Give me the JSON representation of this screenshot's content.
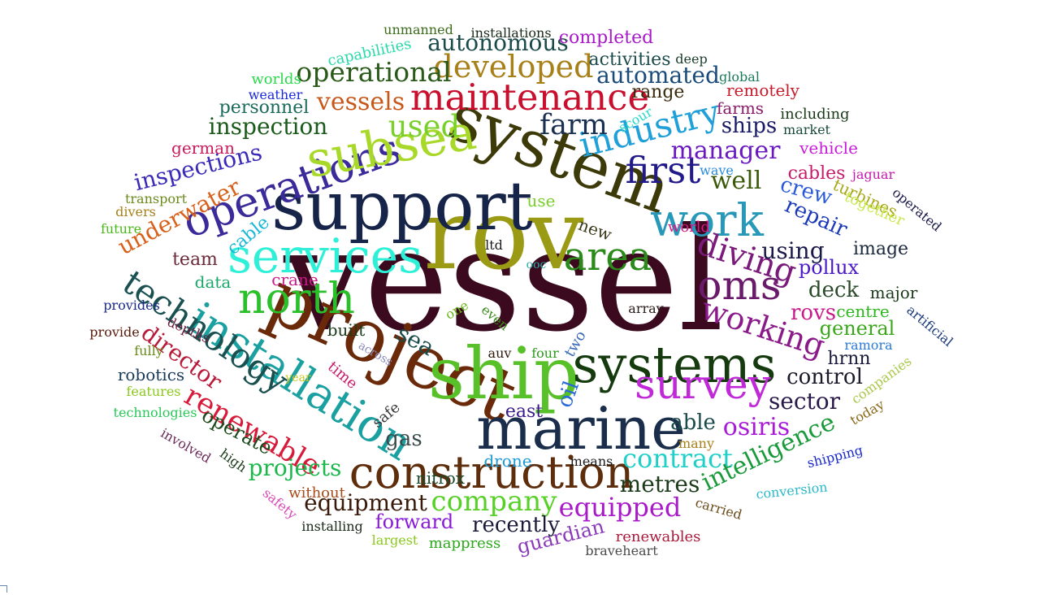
{
  "words": [
    {
      "text": "vessel",
      "color": "#3b0a1e"
    },
    {
      "text": "rov",
      "color": "#9a9a14"
    },
    {
      "text": "support",
      "color": "#16244a"
    },
    {
      "text": "system",
      "color": "#3d3a0a"
    },
    {
      "text": "project",
      "color": "#6a2a0a"
    },
    {
      "text": "ship",
      "color": "#58c028"
    },
    {
      "text": "systems",
      "color": "#143a0e"
    },
    {
      "text": "marine",
      "color": "#1a2d4a"
    },
    {
      "text": "construction",
      "color": "#5e2e0c"
    },
    {
      "text": "services",
      "color": "#2ef0d8"
    },
    {
      "text": "operations",
      "color": "#3a2a9a"
    },
    {
      "text": "subsea",
      "color": "#a8d828"
    },
    {
      "text": "maintenance",
      "color": "#c8102e"
    },
    {
      "text": "installation",
      "color": "#1aa0a0"
    },
    {
      "text": "north",
      "color": "#2ac02a"
    },
    {
      "text": "work",
      "color": "#2898b8"
    },
    {
      "text": "oms",
      "color": "#6a1a6a"
    },
    {
      "text": "industry",
      "color": "#20a0d8"
    },
    {
      "text": "survey",
      "color": "#c028d8"
    },
    {
      "text": "area",
      "color": "#2a8a1a"
    },
    {
      "text": "first",
      "color": "#221a8a"
    },
    {
      "text": "technology",
      "color": "#1a5050"
    },
    {
      "text": "diving",
      "color": "#7a1a7a"
    },
    {
      "text": "working",
      "color": "#8a1a8a"
    },
    {
      "text": "renewable",
      "color": "#d81a3a"
    },
    {
      "text": "developed",
      "color": "#a8801a"
    },
    {
      "text": "operational",
      "color": "#2a5a1a"
    },
    {
      "text": "vessels",
      "color": "#c8581a"
    },
    {
      "text": "farm",
      "color": "#1a3050"
    },
    {
      "text": "used",
      "color": "#7ad02a"
    },
    {
      "text": "manager",
      "color": "#6a1ac0"
    },
    {
      "text": "well",
      "color": "#3a5a0a"
    },
    {
      "text": "company",
      "color": "#58d028"
    },
    {
      "text": "contract",
      "color": "#20d0c8"
    },
    {
      "text": "equipped",
      "color": "#a81ac8"
    },
    {
      "text": "equipment",
      "color": "#3a1a0a"
    },
    {
      "text": "intelligence",
      "color": "#1a9a3a"
    },
    {
      "text": "sector",
      "color": "#2a1a4a"
    },
    {
      "text": "metres",
      "color": "#1a3a1a"
    },
    {
      "text": "control",
      "color": "#1a1a2a"
    },
    {
      "text": "osiris",
      "color": "#a81ad8"
    },
    {
      "text": "projects",
      "color": "#1ab84a"
    },
    {
      "text": "inspection",
      "color": "#1a5a1a"
    },
    {
      "text": "inspections",
      "color": "#3a2ab8"
    },
    {
      "text": "underwater",
      "color": "#d8601a"
    },
    {
      "text": "director",
      "color": "#b81a3a"
    },
    {
      "text": "autonomous",
      "color": "#1a4a4a"
    },
    {
      "text": "automated",
      "color": "#1a4a7a"
    },
    {
      "text": "deck",
      "color": "#2a4a2a"
    },
    {
      "text": "using",
      "color": "#1a1a4a"
    },
    {
      "text": "repair",
      "color": "#1a3ab8"
    },
    {
      "text": "rovs",
      "color": "#c81a8a"
    },
    {
      "text": "general",
      "color": "#3aa81a"
    },
    {
      "text": "sea",
      "color": "#1a4a4a"
    },
    {
      "text": "gas",
      "color": "#3a4a4a"
    },
    {
      "text": "able",
      "color": "#1a4a4a"
    },
    {
      "text": "operate",
      "color": "#1a4a1a"
    },
    {
      "text": "ships",
      "color": "#1a1a6a"
    },
    {
      "text": "crew",
      "color": "#2a5ad8"
    },
    {
      "text": "cables",
      "color": "#c81a6a"
    },
    {
      "text": "oil",
      "color": "#2a6ad8"
    },
    {
      "text": "recently",
      "color": "#1a1a3a"
    },
    {
      "text": "forward",
      "color": "#8a1ad8"
    },
    {
      "text": "guardian",
      "color": "#8a3ab8"
    },
    {
      "text": "pollux",
      "color": "#4a1ac8"
    },
    {
      "text": "image",
      "color": "#1a2a3a"
    },
    {
      "text": "team",
      "color": "#6a2a3a"
    },
    {
      "text": "data",
      "color": "#1aa86a"
    },
    {
      "text": "hrnn",
      "color": "#1a1a3a"
    },
    {
      "text": "major",
      "color": "#1a3a1a"
    },
    {
      "text": "centre",
      "color": "#2ab81a"
    },
    {
      "text": "range",
      "color": "#3a2a0a"
    },
    {
      "text": "personnel",
      "color": "#1a6a5a"
    },
    {
      "text": "completed",
      "color": "#a81ac8"
    },
    {
      "text": "activities",
      "color": "#1a4a4a"
    },
    {
      "text": "new",
      "color": "#3a3a1a"
    },
    {
      "text": "use",
      "color": "#7ad02a"
    },
    {
      "text": "cable",
      "color": "#1ab8d8"
    },
    {
      "text": "crane",
      "color": "#c81a8a"
    },
    {
      "text": "east",
      "color": "#3a1a8a"
    },
    {
      "text": "built",
      "color": "#1a3a1a"
    },
    {
      "text": "nitrox",
      "color": "#1a4a2a"
    },
    {
      "text": "drone",
      "color": "#1a9ad8"
    },
    {
      "text": "means",
      "color": "#1a1a1a"
    },
    {
      "text": "without",
      "color": "#a84a1a"
    },
    {
      "text": "mappress",
      "color": "#2aa81a"
    },
    {
      "text": "renewables",
      "color": "#a81a3a"
    },
    {
      "text": "robotics",
      "color": "#1a3a5a"
    },
    {
      "text": "time",
      "color": "#c81a6a"
    },
    {
      "text": "two",
      "color": "#3a6ab8"
    },
    {
      "text": "four",
      "color": "#2a9a1a"
    },
    {
      "text": "auv",
      "color": "#2a1a0a"
    },
    {
      "text": "array",
      "color": "#2a1a1a"
    },
    {
      "text": "farms",
      "color": "#8a1a6a"
    },
    {
      "text": "vehicle",
      "color": "#c81ad8"
    },
    {
      "text": "turbines",
      "color": "#a8a81a"
    },
    {
      "text": "ltd",
      "color": "#1a1a1a"
    },
    {
      "text": "ooc",
      "color": "#2aa8a8"
    },
    {
      "text": "world",
      "color": "#d81a8a"
    },
    {
      "text": "wave",
      "color": "#2a8ad8"
    },
    {
      "text": "remotely",
      "color": "#c81a2a"
    },
    {
      "text": "including",
      "color": "#1a3a1a"
    },
    {
      "text": "market",
      "color": "#1a4a3a"
    },
    {
      "text": "global",
      "color": "#1a7a5a"
    },
    {
      "text": "deep",
      "color": "#1a3a2a"
    },
    {
      "text": "scour",
      "color": "#2ad8c8"
    },
    {
      "text": "german",
      "color": "#c81a5a"
    },
    {
      "text": "weather",
      "color": "#1a2ad8"
    },
    {
      "text": "worlds",
      "color": "#2ad84a"
    },
    {
      "text": "capabilities",
      "color": "#2ad8a8"
    },
    {
      "text": "unmanned",
      "color": "#3a6a1a"
    },
    {
      "text": "installations",
      "color": "#1a2a1a"
    },
    {
      "text": "transport",
      "color": "#6a8a1a"
    },
    {
      "text": "divers",
      "color": "#a8801a"
    },
    {
      "text": "future",
      "color": "#4ab81a"
    },
    {
      "text": "provides",
      "color": "#1a2a8a"
    },
    {
      "text": "provide",
      "color": "#5a1a0a"
    },
    {
      "text": "depths",
      "color": "#6a1a3a"
    },
    {
      "text": "fully",
      "color": "#6a8a1a"
    },
    {
      "text": "across",
      "color": "#8a8ab8"
    },
    {
      "text": "year",
      "color": "#c8c81a"
    },
    {
      "text": "features",
      "color": "#8ac81a"
    },
    {
      "text": "technologies",
      "color": "#2ac85a"
    },
    {
      "text": "involved",
      "color": "#6a2a5a"
    },
    {
      "text": "high",
      "color": "#1a3a1a"
    },
    {
      "text": "safety",
      "color": "#d84ab8"
    },
    {
      "text": "installing",
      "color": "#1a2a1a"
    },
    {
      "text": "largest",
      "color": "#8ac81a"
    },
    {
      "text": "braveheart",
      "color": "#4a4a4a"
    },
    {
      "text": "carried",
      "color": "#6a4a1a"
    },
    {
      "text": "conversion",
      "color": "#2ab8c8"
    },
    {
      "text": "shipping",
      "color": "#1a2ac8"
    },
    {
      "text": "many",
      "color": "#a8801a"
    },
    {
      "text": "today",
      "color": "#8a6a1a"
    },
    {
      "text": "companies",
      "color": "#a8c84a"
    },
    {
      "text": "ramora",
      "color": "#2a7ad8"
    },
    {
      "text": "artificial",
      "color": "#1a3a7a"
    },
    {
      "text": "operated",
      "color": "#1a1a4a"
    },
    {
      "text": "together",
      "color": "#c8e84a"
    },
    {
      "text": "jaguar",
      "color": "#c81aa8"
    },
    {
      "text": "safe",
      "color": "#3a3a3a"
    },
    {
      "text": "one",
      "color": "#6ab81a"
    },
    {
      "text": "even",
      "color": "#3a8a1a"
    }
  ]
}
